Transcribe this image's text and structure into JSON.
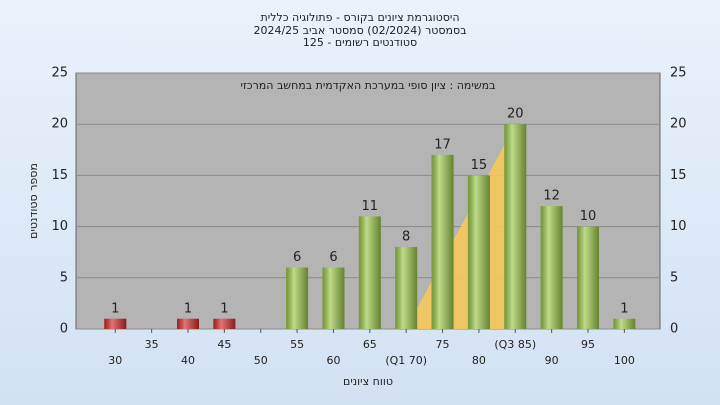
{
  "chart_data": {
    "type": "bar",
    "title": [
      "היסטוגרמת ציונים בקורס - פתולוגיה כללית",
      "בסמסטר (02/2024) סמסטר אביב 2024/25",
      "סטודנטים רשומים - 125"
    ],
    "annotation": "במשימה : ציון סופי במערכת האקדמית במחשב המרכזי",
    "xlabel": "טווח ציונים",
    "ylabel": "מספר סטודנטים",
    "x": [
      30,
      35,
      40,
      45,
      50,
      55,
      60,
      65,
      70,
      75,
      80,
      85,
      90,
      95,
      100
    ],
    "values": [
      1,
      0,
      1,
      1,
      0,
      6,
      6,
      11,
      8,
      17,
      15,
      20,
      12,
      10,
      1
    ],
    "colors": [
      "#d42a2a",
      "#d42a2a",
      "#d42a2a",
      "#d42a2a",
      "#d42a2a",
      "#9cc84a",
      "#9cc84a",
      "#9cc84a",
      "#9cc84a",
      "#9cc84a",
      "#9cc84a",
      "#9cc84a",
      "#9cc84a",
      "#9cc84a",
      "#9cc84a"
    ],
    "quartiles": [
      70,
      85
    ],
    "quartile_color": "#f5c85a",
    "xlim": [
      24.6,
      104.9
    ],
    "xticks": [
      30,
      35,
      40,
      45,
      50,
      55,
      60,
      65,
      {
        "value": 70,
        "label": "(Q1 70)"
      },
      75,
      80,
      {
        "value": 85,
        "label": "(Q3 85)"
      },
      90,
      95,
      100
    ],
    "ylim": [
      0,
      25
    ],
    "yticks": [
      0,
      5,
      10,
      15,
      20,
      25
    ],
    "grid": true
  }
}
